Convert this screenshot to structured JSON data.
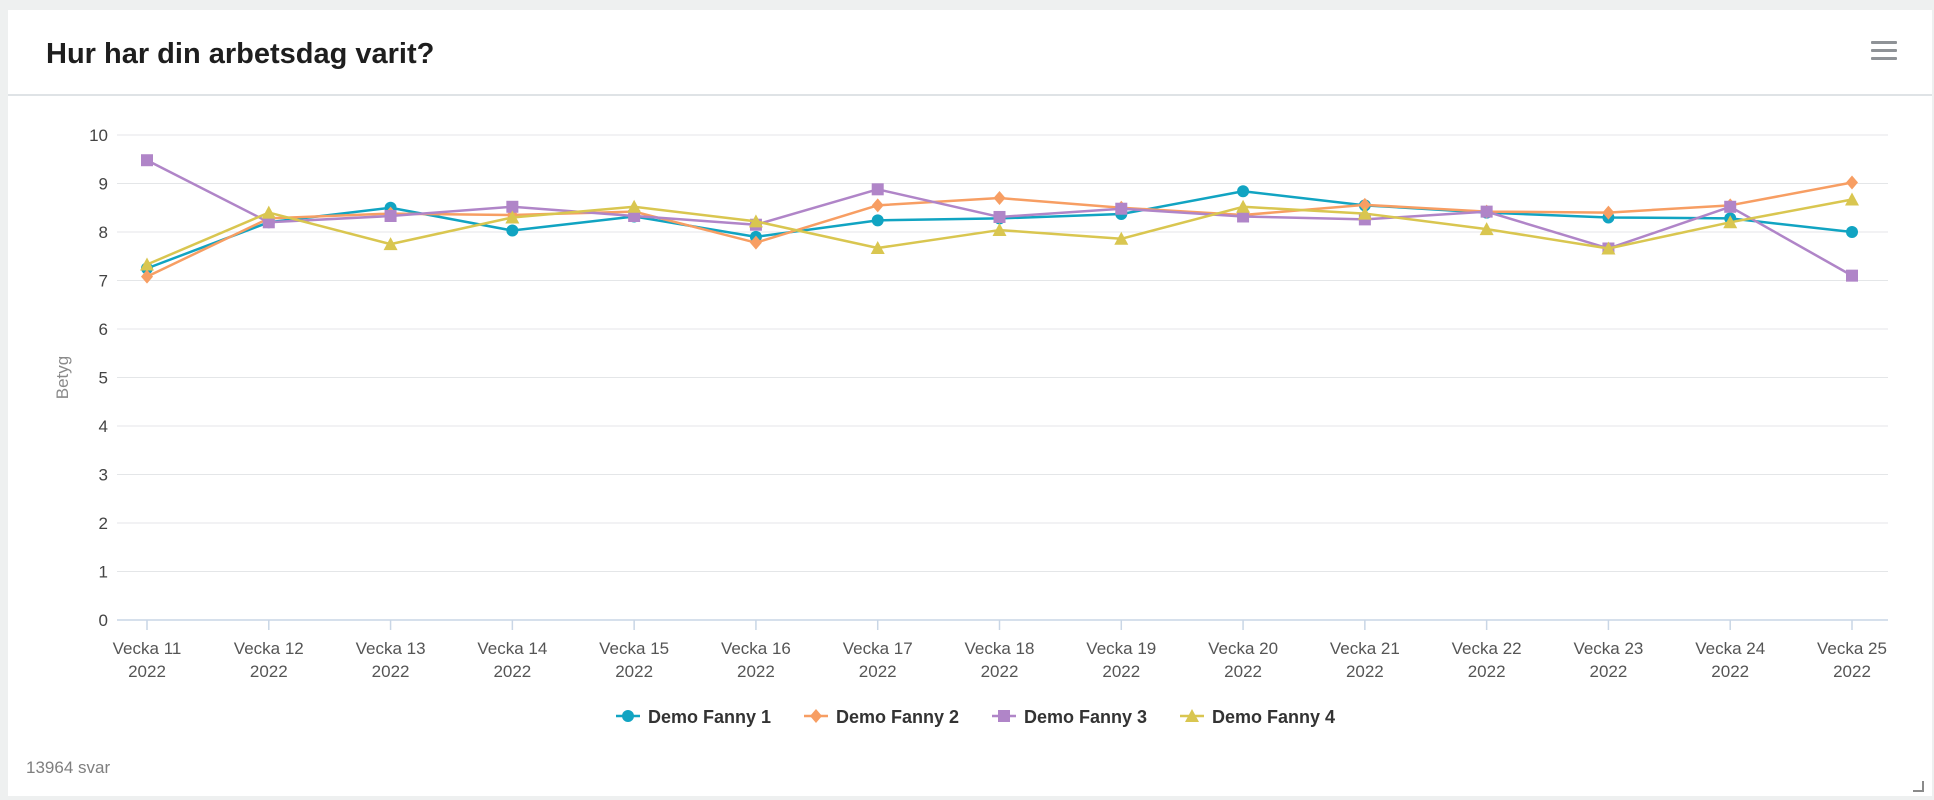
{
  "header": {
    "title": "Hur har din arbetsdag varit?",
    "menu_icon": "hamburger-menu-icon"
  },
  "footer": {
    "count_label": "13964 svar"
  },
  "chart_data": {
    "type": "line",
    "title": "Hur har din arbetsdag varit?",
    "xlabel": "",
    "ylabel": "Betyg",
    "ylim": [
      0,
      10
    ],
    "yticks": [
      0,
      1,
      2,
      3,
      4,
      5,
      6,
      7,
      8,
      9,
      10
    ],
    "grid": true,
    "legend": "bottom-center",
    "categories": [
      [
        "Vecka 11",
        "2022"
      ],
      [
        "Vecka 12",
        "2022"
      ],
      [
        "Vecka 13",
        "2022"
      ],
      [
        "Vecka 14",
        "2022"
      ],
      [
        "Vecka 15",
        "2022"
      ],
      [
        "Vecka 16",
        "2022"
      ],
      [
        "Vecka 17",
        "2022"
      ],
      [
        "Vecka 18",
        "2022"
      ],
      [
        "Vecka 19",
        "2022"
      ],
      [
        "Vecka 20",
        "2022"
      ],
      [
        "Vecka 21",
        "2022"
      ],
      [
        "Vecka 22",
        "2022"
      ],
      [
        "Vecka 23",
        "2022"
      ],
      [
        "Vecka 24",
        "2022"
      ],
      [
        "Vecka 25",
        "2022"
      ]
    ],
    "series": [
      {
        "name": "Demo Fanny 1",
        "color": "#11a4c2",
        "marker": "circle",
        "values": [
          7.25,
          8.2,
          8.5,
          8.03,
          8.32,
          7.9,
          8.24,
          8.28,
          8.37,
          8.84,
          8.55,
          8.4,
          8.3,
          8.28,
          8.0
        ]
      },
      {
        "name": "Demo Fanny 2",
        "color": "#f79e63",
        "marker": "diamond",
        "values": [
          7.08,
          8.28,
          8.38,
          8.35,
          8.42,
          7.78,
          8.55,
          8.7,
          8.5,
          8.35,
          8.56,
          8.42,
          8.4,
          8.55,
          9.02
        ]
      },
      {
        "name": "Demo Fanny 3",
        "color": "#b085c8",
        "marker": "square",
        "values": [
          9.48,
          8.2,
          8.33,
          8.52,
          8.33,
          8.15,
          8.88,
          8.31,
          8.48,
          8.32,
          8.26,
          8.42,
          7.66,
          8.52,
          7.1
        ]
      },
      {
        "name": "Demo Fanny 4",
        "color": "#d9c650",
        "marker": "triangle",
        "values": [
          7.33,
          8.4,
          7.75,
          8.3,
          8.52,
          8.22,
          7.67,
          8.04,
          7.86,
          8.52,
          8.38,
          8.06,
          7.66,
          8.2,
          8.67
        ]
      }
    ]
  }
}
